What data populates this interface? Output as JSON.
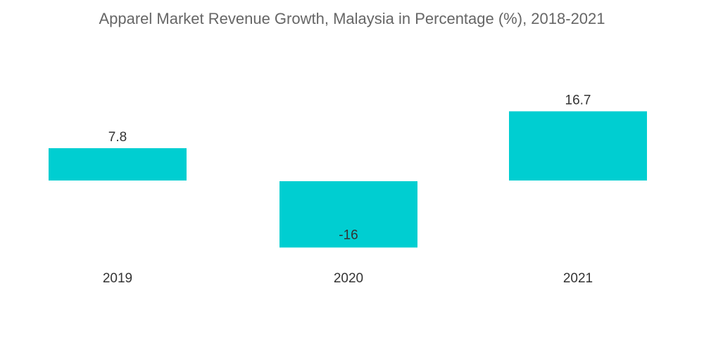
{
  "chart_data": {
    "type": "bar",
    "title": "Apparel Market Revenue Growth, Malaysia in Percentage (%), 2018-2021",
    "categories": [
      "2019",
      "2020",
      "2021"
    ],
    "values": [
      7.8,
      -16,
      16.7
    ],
    "value_labels": [
      "7.8",
      "-16",
      "16.7"
    ],
    "xlabel": "",
    "ylabel": "",
    "grid": false,
    "legend": "none",
    "bar_color": "#00CED1"
  }
}
